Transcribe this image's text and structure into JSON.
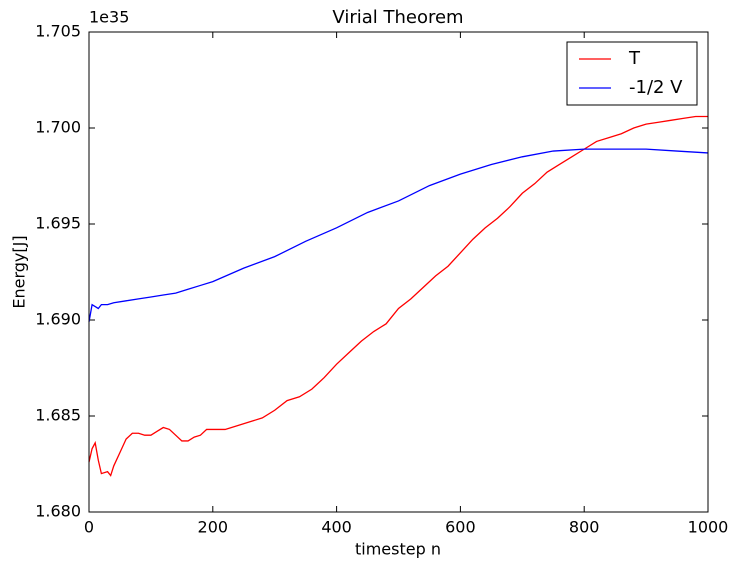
{
  "chart_data": {
    "type": "line",
    "title": "Virial Theorem",
    "xlabel": "timestep n",
    "ylabel": "Energy[J]",
    "y_offset_label": "1e35",
    "xlim": [
      0,
      1000
    ],
    "xticks": [
      0,
      200,
      400,
      600,
      800,
      1000
    ],
    "ylim": [
      1.68,
      1.705
    ],
    "yticks": [
      {
        "value": 1.68,
        "label": "1.680"
      },
      {
        "value": 1.685,
        "label": "1.685"
      },
      {
        "value": 1.69,
        "label": "1.690"
      },
      {
        "value": 1.695,
        "label": "1.695"
      },
      {
        "value": 1.7,
        "label": "1.700"
      },
      {
        "value": 1.705,
        "label": "1.705"
      }
    ],
    "legend": "upper right",
    "grid": false,
    "series": [
      {
        "name": "T",
        "color": "#ff0000",
        "x": [
          0,
          5,
          10,
          15,
          20,
          30,
          35,
          40,
          50,
          60,
          70,
          80,
          90,
          100,
          110,
          120,
          130,
          140,
          150,
          160,
          170,
          180,
          190,
          200,
          220,
          240,
          260,
          280,
          300,
          320,
          340,
          360,
          380,
          400,
          420,
          440,
          460,
          480,
          500,
          520,
          540,
          560,
          580,
          600,
          620,
          640,
          660,
          680,
          700,
          720,
          740,
          760,
          780,
          800,
          820,
          840,
          860,
          880,
          900,
          920,
          940,
          960,
          980,
          1000
        ],
        "values": [
          1.6826,
          1.6833,
          1.6836,
          1.6827,
          1.682,
          1.6821,
          1.6819,
          1.6824,
          1.6831,
          1.6838,
          1.6841,
          1.6841,
          1.684,
          1.684,
          1.6842,
          1.6844,
          1.6843,
          1.684,
          1.6837,
          1.6837,
          1.6839,
          1.684,
          1.6843,
          1.6843,
          1.6843,
          1.6845,
          1.6847,
          1.6849,
          1.6853,
          1.6858,
          1.686,
          1.6864,
          1.687,
          1.6877,
          1.6883,
          1.6889,
          1.6894,
          1.6898,
          1.6906,
          1.6911,
          1.6917,
          1.6923,
          1.6928,
          1.6935,
          1.6942,
          1.6948,
          1.6953,
          1.6959,
          1.6966,
          1.6971,
          1.6977,
          1.6981,
          1.6985,
          1.6989,
          1.6993,
          1.6995,
          1.6997,
          1.7,
          1.7002,
          1.7003,
          1.7004,
          1.7005,
          1.7006,
          1.7006
        ]
      },
      {
        "name": "-1/2 V",
        "color": "#0000ff",
        "x": [
          0,
          5,
          10,
          15,
          20,
          30,
          40,
          60,
          80,
          100,
          120,
          140,
          160,
          180,
          200,
          250,
          300,
          350,
          400,
          450,
          500,
          550,
          600,
          650,
          700,
          750,
          800,
          850,
          900,
          950,
          1000
        ],
        "values": [
          1.6899,
          1.6908,
          1.6907,
          1.6906,
          1.6908,
          1.6908,
          1.6909,
          1.691,
          1.6911,
          1.6912,
          1.6913,
          1.6914,
          1.6916,
          1.6918,
          1.692,
          1.6927,
          1.6933,
          1.6941,
          1.6948,
          1.6956,
          1.6962,
          1.697,
          1.6976,
          1.6981,
          1.6985,
          1.6988,
          1.6989,
          1.6989,
          1.6989,
          1.6988,
          1.6987
        ]
      }
    ]
  }
}
